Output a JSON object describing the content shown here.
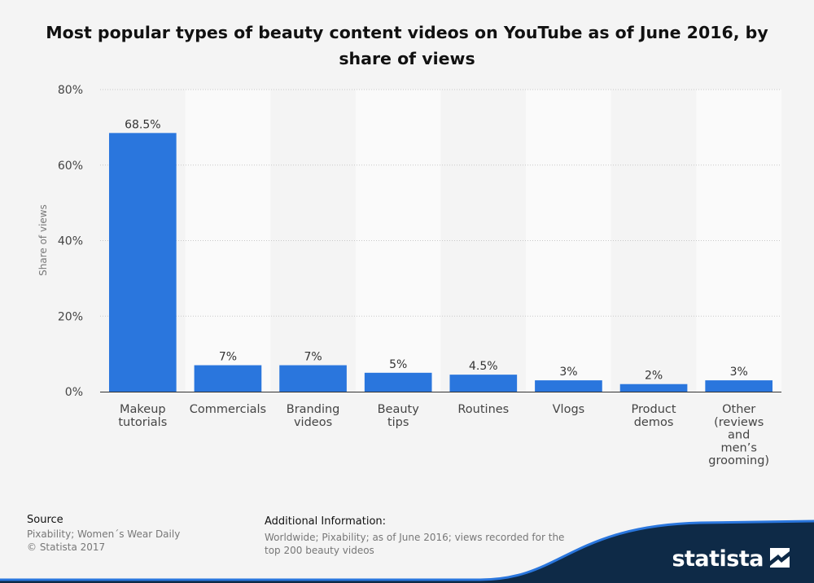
{
  "chart_data": {
    "type": "bar",
    "title": "Most popular types of beauty content videos on YouTube as of June 2016, by share of views",
    "ylabel": "Share of views",
    "xlabel": "",
    "ylim": [
      0,
      80
    ],
    "yticks": [
      "0%",
      "20%",
      "40%",
      "60%",
      "80%"
    ],
    "ytick_values": [
      0,
      20,
      40,
      60,
      80
    ],
    "grid": true,
    "bar_color": "#2a76dd",
    "categories": [
      [
        "Makeup",
        "tutorials"
      ],
      [
        "Commercials"
      ],
      [
        "Branding",
        "videos"
      ],
      [
        "Beauty",
        "tips"
      ],
      [
        "Routines"
      ],
      [
        "Vlogs"
      ],
      [
        "Product",
        "demos"
      ],
      [
        "Other",
        "(reviews",
        "and",
        "men’s",
        "grooming)"
      ]
    ],
    "values": [
      68.5,
      7,
      7,
      5,
      4.5,
      3,
      2,
      3
    ],
    "value_labels": [
      "68.5%",
      "7%",
      "7%",
      "5%",
      "4.5%",
      "3%",
      "2%",
      "3%"
    ]
  },
  "footer": {
    "source_label": "Source",
    "source_lines": [
      "Pixability; Women´s Wear Daily",
      "© Statista 2017"
    ],
    "info_label": "Additional Information:",
    "info_lines": [
      "Worldwide; Pixability; as of June 2016; views recorded for the",
      "top 200 beauty videos"
    ]
  },
  "brand": {
    "name": "statista",
    "color": "#0e2a47"
  }
}
